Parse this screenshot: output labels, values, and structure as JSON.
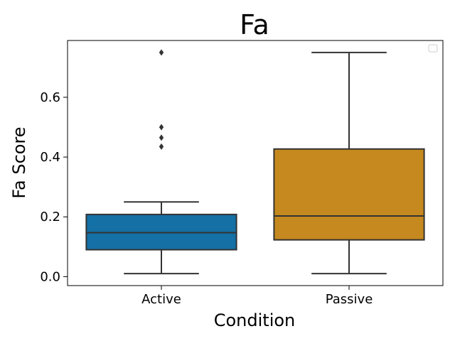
{
  "chart_data": {
    "type": "box",
    "title": "Fa",
    "xlabel": "Condition",
    "ylabel": "Fa Score",
    "categories": [
      "Active",
      "Passive"
    ],
    "ylim": [
      -0.03,
      0.79
    ],
    "yticks": [
      0.0,
      0.2,
      0.4,
      0.6
    ],
    "ytick_labels": [
      "0.0",
      "0.2",
      "0.4",
      "0.6"
    ],
    "legend": "top-right (empty)",
    "grid": false,
    "series": [
      {
        "category": "Active",
        "color": "#1470a5",
        "whisker_low": 0.01,
        "q1": 0.09,
        "median": 0.147,
        "q3": 0.208,
        "whisker_high": 0.25,
        "outliers": [
          0.435,
          0.465,
          0.5,
          0.75
        ]
      },
      {
        "category": "Passive",
        "color": "#c5891f",
        "whisker_low": 0.01,
        "q1": 0.123,
        "median": 0.203,
        "q3": 0.427,
        "whisker_high": 0.75,
        "outliers": []
      }
    ]
  }
}
